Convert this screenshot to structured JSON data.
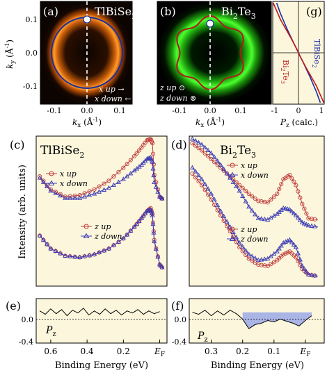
{
  "chart_data": [
    {
      "panel": "(a)",
      "type": "heatmap",
      "title": "TlBiSe",
      "title_sub": "2",
      "xlabel": "k",
      "xlabel_sub": "x",
      "xlabel_unit": " (Å",
      "xlabel_sup": "-1",
      "xlabel_close": ")",
      "ylabel": "k",
      "ylabel_sub": "y",
      "ylabel_unit": " (Å",
      "ylabel_sup": "-1",
      "ylabel_close": ")",
      "xlim": [
        -0.17,
        0.17
      ],
      "ylim": [
        -0.17,
        0.17
      ],
      "xticks": [
        "-0.1",
        "0.0",
        "0.1"
      ],
      "yticks": [
        "0.1",
        "0.0",
        "-0.1"
      ],
      "contour_radius": 0.108,
      "colors": {
        "background": "#0b0400",
        "ring": "#ff8c1a",
        "contour": "#1b2e9e"
      },
      "legend": [
        {
          "label": "x up",
          "arrow": "→"
        },
        {
          "label": "x down",
          "arrow": "←"
        }
      ]
    },
    {
      "panel": "(b)",
      "type": "heatmap",
      "title": "Bi",
      "title_sub": "2",
      "title_rest": "Te",
      "title_sub2": "3",
      "xlabel": "k",
      "xlabel_sub": "x",
      "xlabel_unit": " (Å",
      "xlabel_sup": "-1",
      "xlabel_close": ")",
      "xlim": [
        -0.17,
        0.17
      ],
      "ylim": [
        -0.17,
        0.17
      ],
      "xticks": [
        "-0.1",
        "0.0",
        "0.1"
      ],
      "contour_radius": 0.1,
      "colors": {
        "background": "#000000",
        "ring": "#36f01e",
        "contour": "#b01818"
      },
      "legend": [
        {
          "label": "z up",
          "symbol": "⊙"
        },
        {
          "label": "z down",
          "symbol": "⊗"
        }
      ]
    },
    {
      "panel": "(g)",
      "type": "line",
      "xlabel": "P",
      "xlabel_sub": "z",
      "xlabel_rest": " (calc.)",
      "xlim": [
        -1,
        1
      ],
      "ylim": [
        -0.17,
        0.17
      ],
      "xticks": [
        "-1",
        "0",
        "1"
      ],
      "series": [
        {
          "name": "TlBiSe",
          "name_sub": "2",
          "color": "#1b2ea8",
          "x": [
            -0.85,
            -0.7,
            -0.45,
            -0.2,
            0.0,
            0.2,
            0.45,
            0.7,
            0.85
          ],
          "y": [
            0.165,
            0.13,
            0.08,
            0.035,
            0.0,
            -0.035,
            -0.08,
            -0.13,
            -0.165
          ]
        },
        {
          "name": "Bi",
          "name_sub": "2",
          "name_rest": "Te",
          "name_sub2": "3",
          "color": "#c01818",
          "x": [
            -0.98,
            -0.7,
            -0.3,
            -0.05,
            0.0,
            0.05,
            0.3,
            0.7,
            0.98
          ],
          "y": [
            0.165,
            0.11,
            0.05,
            0.01,
            0.0,
            -0.01,
            -0.05,
            -0.11,
            -0.165
          ]
        }
      ]
    },
    {
      "panel": "(c)",
      "type": "scatter",
      "title": "TlBiSe",
      "title_sub": "2",
      "ylabel": "Intensity (arb. units)",
      "xlim": [
        0.68,
        -0.04
      ],
      "ylim": [
        0,
        1
      ],
      "groups": [
        {
          "up_label": "x up",
          "down_label": "x down",
          "x": [
            0.66,
            0.6,
            0.52,
            0.44,
            0.36,
            0.28,
            0.2,
            0.14,
            0.1,
            0.07,
            0.05,
            0.04,
            0.03,
            0.0,
            -0.02
          ],
          "up": [
            0.74,
            0.65,
            0.6,
            0.61,
            0.65,
            0.71,
            0.8,
            0.88,
            0.94,
            0.99,
            1.0,
            0.97,
            0.75,
            0.6,
            0.58
          ],
          "down": [
            0.73,
            0.64,
            0.59,
            0.59,
            0.62,
            0.66,
            0.72,
            0.78,
            0.82,
            0.86,
            0.87,
            0.84,
            0.7,
            0.6,
            0.58
          ]
        },
        {
          "up_label": "z up",
          "down_label": "z down",
          "x": [
            0.66,
            0.6,
            0.52,
            0.44,
            0.36,
            0.28,
            0.2,
            0.14,
            0.1,
            0.07,
            0.05,
            0.04,
            0.03,
            0.0,
            -0.02
          ],
          "up": [
            0.33,
            0.24,
            0.19,
            0.18,
            0.2,
            0.24,
            0.31,
            0.39,
            0.45,
            0.5,
            0.52,
            0.48,
            0.3,
            0.13,
            0.1
          ],
          "down": [
            0.33,
            0.24,
            0.19,
            0.18,
            0.2,
            0.24,
            0.31,
            0.39,
            0.45,
            0.5,
            0.51,
            0.47,
            0.29,
            0.13,
            0.1
          ]
        }
      ],
      "colors": {
        "up": "#c03a3a",
        "down": "#3a3ab4"
      }
    },
    {
      "panel": "(d)",
      "type": "scatter",
      "title": "Bi",
      "title_sub": "2",
      "title_rest": "Te",
      "title_sub2": "3",
      "xlim": [
        0.37,
        -0.06
      ],
      "ylim": [
        0,
        1
      ],
      "groups": [
        {
          "up_label": "x up",
          "down_label": "x down",
          "x": [
            0.36,
            0.33,
            0.3,
            0.27,
            0.24,
            0.21,
            0.18,
            0.15,
            0.12,
            0.09,
            0.07,
            0.05,
            0.03,
            0.01,
            -0.01,
            -0.04
          ],
          "up": [
            0.97,
            0.92,
            0.86,
            0.8,
            0.74,
            0.68,
            0.62,
            0.57,
            0.56,
            0.62,
            0.72,
            0.75,
            0.68,
            0.55,
            0.45,
            0.44
          ],
          "down": [
            1.0,
            0.96,
            0.9,
            0.82,
            0.73,
            0.64,
            0.53,
            0.45,
            0.44,
            0.48,
            0.52,
            0.51,
            0.47,
            0.42,
            0.4,
            0.39
          ]
        },
        {
          "up_label": "z up",
          "down_label": "z down",
          "x": [
            0.36,
            0.33,
            0.3,
            0.27,
            0.24,
            0.21,
            0.18,
            0.15,
            0.12,
            0.09,
            0.07,
            0.05,
            0.03,
            0.01,
            -0.01,
            -0.04
          ],
          "up": [
            0.76,
            0.68,
            0.58,
            0.47,
            0.36,
            0.25,
            0.17,
            0.13,
            0.12,
            0.16,
            0.2,
            0.22,
            0.18,
            0.1,
            0.06,
            0.05
          ],
          "down": [
            0.8,
            0.72,
            0.62,
            0.5,
            0.39,
            0.28,
            0.2,
            0.16,
            0.17,
            0.22,
            0.28,
            0.3,
            0.25,
            0.12,
            0.06,
            0.05
          ]
        }
      ],
      "colors": {
        "up": "#c03a3a",
        "down": "#3a3ab4"
      }
    },
    {
      "panel": "(e)",
      "type": "line",
      "xlabel": "Binding Energy (eV)",
      "ylabel": "P",
      "ylabel_sub": "z",
      "xlim": [
        0.68,
        -0.04
      ],
      "ylim": [
        -0.45,
        0.2
      ],
      "xticks": [
        "0.6",
        "0.4",
        "0.2",
        "E"
      ],
      "xtick_sub": "F",
      "yticks": [
        "0.0",
        "-0.4"
      ],
      "x": [
        0.66,
        0.63,
        0.6,
        0.57,
        0.54,
        0.51,
        0.48,
        0.45,
        0.42,
        0.39,
        0.36,
        0.33,
        0.3,
        0.27,
        0.24,
        0.21,
        0.18,
        0.15,
        0.12,
        0.09,
        0.06,
        0.03,
        0.0
      ],
      "y": [
        0.02,
        -0.03,
        0.05,
        -0.02,
        0.04,
        -0.05,
        0.03,
        -0.01,
        0.06,
        -0.04,
        0.02,
        -0.03,
        0.05,
        -0.02,
        0.03,
        -0.04,
        0.02,
        -0.01,
        0.04,
        -0.03,
        0.02,
        -0.02,
        0.01
      ]
    },
    {
      "panel": "(f)",
      "type": "area",
      "xlabel": "Binding Energy (eV)",
      "ylabel": "P",
      "ylabel_sub": "z",
      "xlim": [
        0.37,
        -0.06
      ],
      "ylim": [
        -0.45,
        0.2
      ],
      "xticks": [
        "0.3",
        "0.2",
        "0.1",
        "E"
      ],
      "xtick_sub": "F",
      "yticks": [
        "0.0",
        "-0.4"
      ],
      "x": [
        0.36,
        0.34,
        0.32,
        0.3,
        0.28,
        0.26,
        0.24,
        0.22,
        0.2,
        0.18,
        0.16,
        0.14,
        0.12,
        0.1,
        0.08,
        0.06,
        0.04,
        0.02,
        0.0,
        -0.02
      ],
      "y": [
        0.0,
        -0.03,
        0.03,
        -0.05,
        0.02,
        -0.04,
        0.03,
        -0.02,
        -0.1,
        -0.24,
        -0.18,
        -0.16,
        -0.12,
        -0.14,
        -0.1,
        -0.13,
        -0.16,
        -0.2,
        -0.12,
        -0.05
      ],
      "fill": "#aab5e6"
    }
  ]
}
